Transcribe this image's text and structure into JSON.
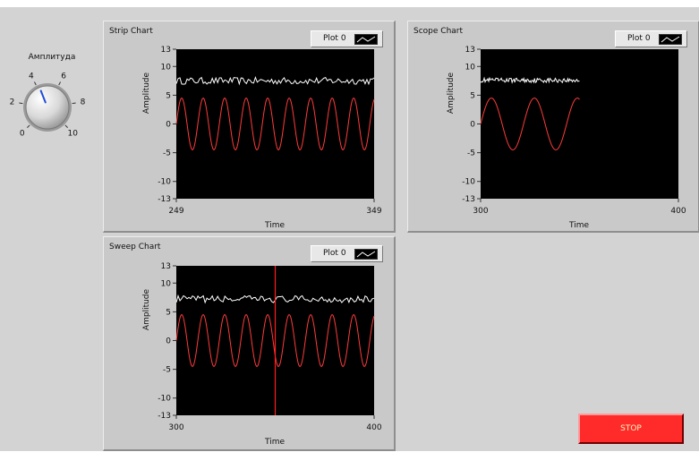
{
  "knob": {
    "label": "Амплитуда",
    "scale": [
      "0",
      "2",
      "4",
      "6",
      "8",
      "10"
    ],
    "value": 4.2
  },
  "charts": {
    "strip": {
      "title": "Strip Chart",
      "legend": "Plot 0",
      "xlabel": "Time",
      "ylabel": "Amplitude",
      "xmin": "249",
      "xmax": "349",
      "yticks": [
        "13",
        "10",
        "5",
        "0",
        "-5",
        "-10",
        "-13"
      ]
    },
    "scope": {
      "title": "Scope Chart",
      "legend": "Plot 0",
      "xlabel": "Time",
      "ylabel": "Amplitude",
      "xmin": "300",
      "xmax": "400",
      "yticks": [
        "13",
        "10",
        "5",
        "0",
        "-5",
        "-10",
        "-13"
      ]
    },
    "sweep": {
      "title": "Sweep Chart",
      "legend": "Plot 0",
      "xlabel": "Time",
      "ylabel": "Amplitude",
      "xmin": "300",
      "xmax": "400",
      "yticks": [
        "13",
        "10",
        "5",
        "0",
        "-5",
        "-10",
        "-13"
      ]
    }
  },
  "stop": {
    "label": "STOP"
  },
  "colors": {
    "panel": "#d3d3d3",
    "plot_bg": "#000000",
    "sine": "#ff3b3b",
    "noise": "#ffffff",
    "sweep_cursor": "#ff2020",
    "stop_button": "#ff2b2b"
  },
  "chart_data": [
    {
      "type": "line",
      "title": "Strip Chart",
      "xlabel": "Time",
      "ylabel": "Amplitude",
      "xlim": [
        249,
        349
      ],
      "ylim": [
        -13,
        13
      ],
      "series": [
        {
          "kind": "sine",
          "amplitude": 4.5,
          "offset": 0,
          "cycles": 9.2
        },
        {
          "kind": "noise",
          "level": 7.5,
          "jitter": 0.6
        }
      ]
    },
    {
      "type": "line",
      "title": "Scope Chart",
      "xlabel": "Time",
      "ylabel": "Amplitude",
      "xlim": [
        300,
        400
      ],
      "ylim": [
        -13,
        13
      ],
      "series": [
        {
          "kind": "sine",
          "amplitude": 4.5,
          "offset": 0,
          "cycles": 4.6,
          "x_end": 350
        },
        {
          "kind": "noise",
          "level": 7.6,
          "jitter": 0.4,
          "x_end": 350
        }
      ]
    },
    {
      "type": "line",
      "title": "Sweep Chart",
      "xlabel": "Time",
      "ylabel": "Amplitude",
      "xlim": [
        300,
        400
      ],
      "ylim": [
        -13,
        13
      ],
      "sweep_at": 350,
      "series": [
        {
          "kind": "sine",
          "amplitude": 4.5,
          "offset": 0,
          "cycles": 9.2
        },
        {
          "kind": "noise",
          "level": 7.2,
          "jitter": 0.6
        }
      ]
    }
  ]
}
